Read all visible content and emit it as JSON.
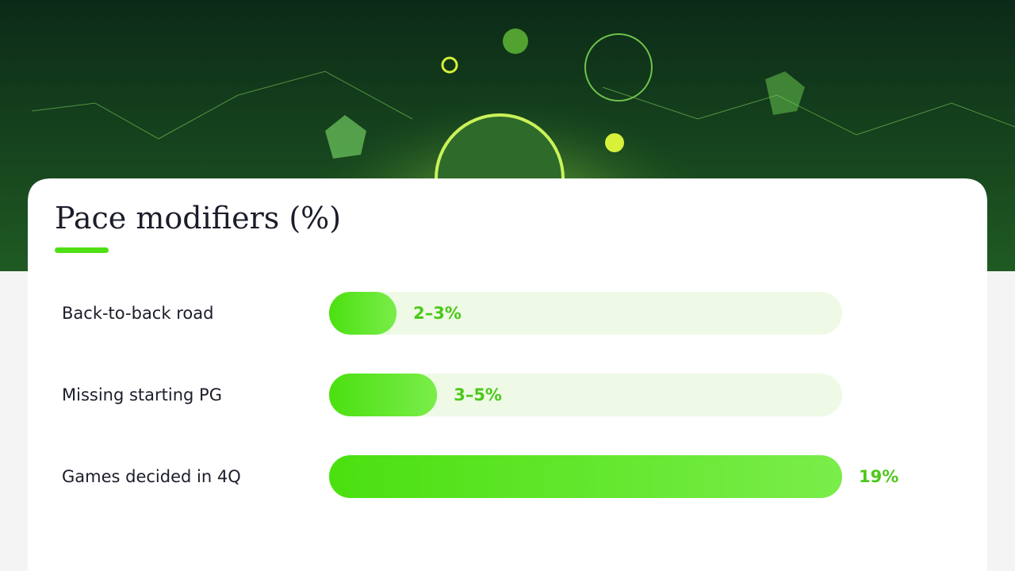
{
  "chart_data": {
    "type": "bar",
    "orientation": "horizontal",
    "title": "Pace modifiers (%)",
    "categories": [
      "Back-to-back road",
      "Missing starting PG",
      "Games decided in 4Q"
    ],
    "values": [
      2.5,
      4,
      19
    ],
    "value_labels": [
      "2–3%",
      "3–5%",
      "19%"
    ],
    "xlim": [
      0,
      19
    ],
    "color": "#4fe014"
  }
}
